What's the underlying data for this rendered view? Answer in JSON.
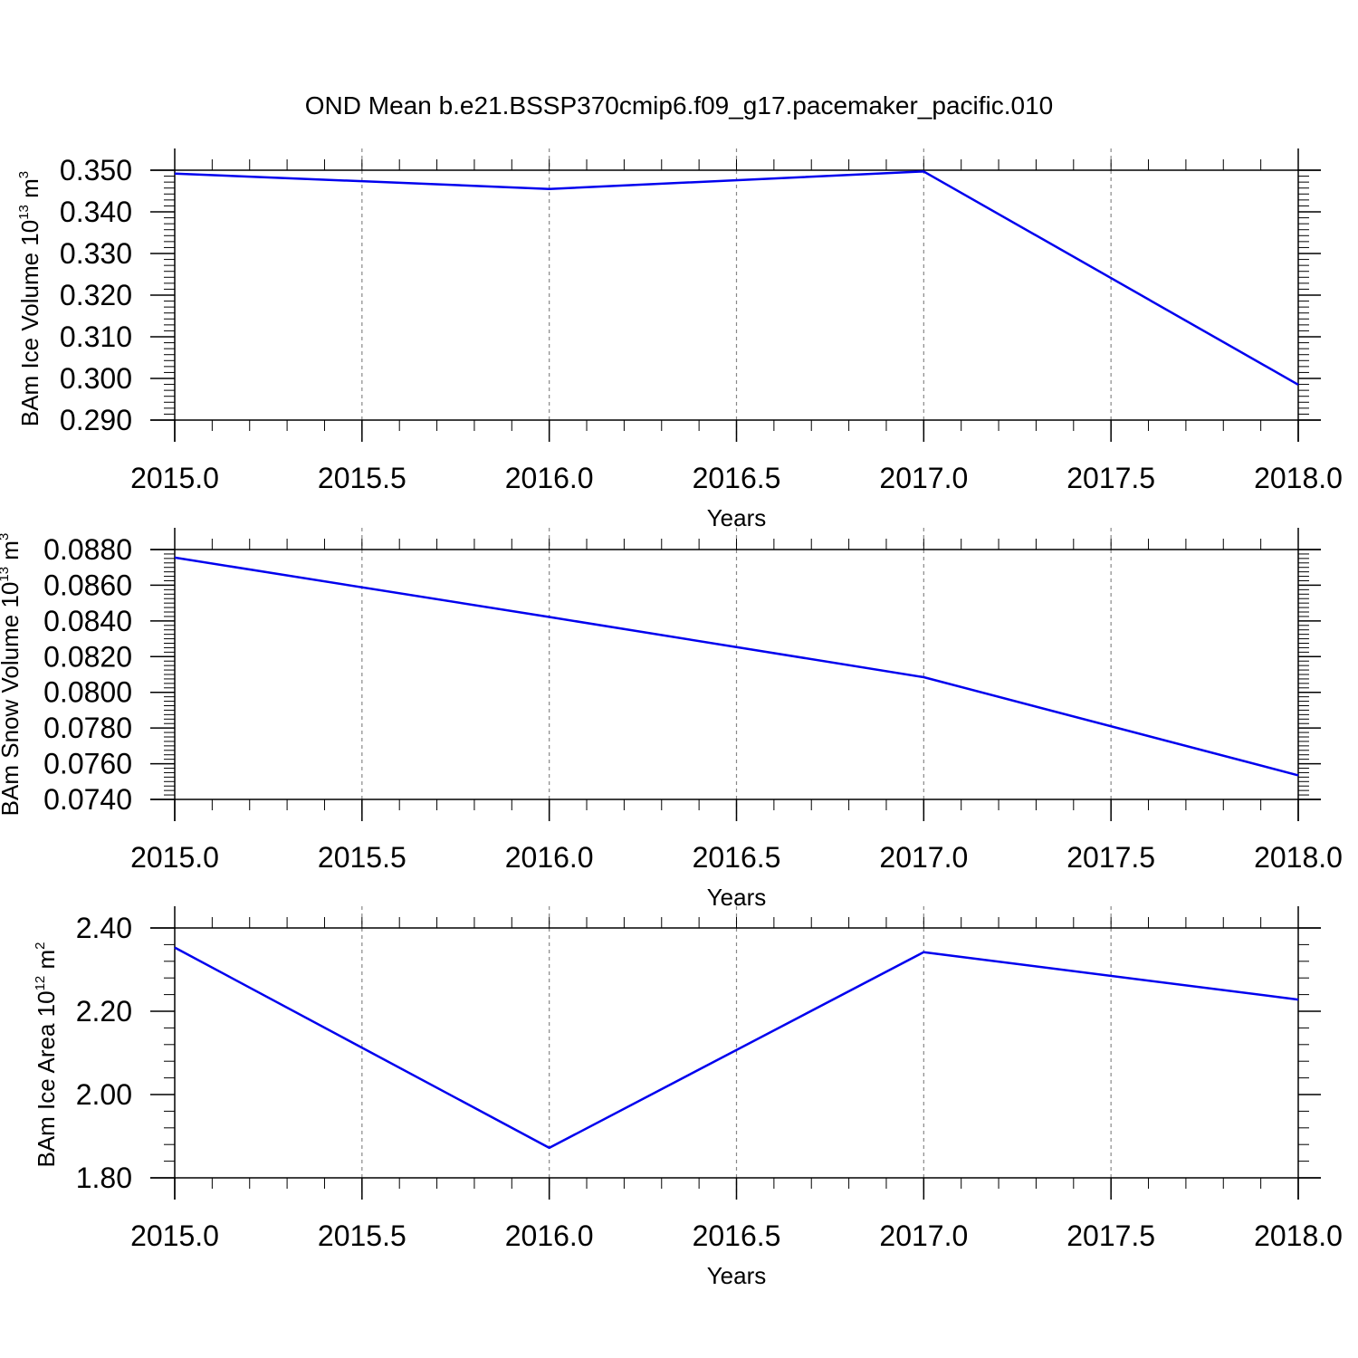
{
  "figure": {
    "title": "OND Mean b.e21.BSSP370cmip6.f09_g17.pacemaker_pacific.010"
  },
  "chart_data": [
    {
      "type": "line",
      "xlabel": "Years",
      "ylabel": {
        "text": "BAm Ice Volume 10",
        "sup1": "13",
        "unit": " m",
        "sup2": "3"
      },
      "xlim": [
        2015.0,
        2018.0
      ],
      "ylim": [
        0.29,
        0.35
      ],
      "xticks": [
        2015.0,
        2015.5,
        2016.0,
        2016.5,
        2017.0,
        2017.5,
        2018.0
      ],
      "xtick_labels": [
        "2015.0",
        "2015.5",
        "2016.0",
        "2016.5",
        "2017.0",
        "2017.5",
        "2018.0"
      ],
      "yticks": [
        0.29,
        0.3,
        0.31,
        0.32,
        0.33,
        0.34,
        0.35
      ],
      "ytick_labels": [
        "0.290",
        "0.300",
        "0.310",
        "0.320",
        "0.330",
        "0.340",
        "0.350"
      ],
      "grid": "vertical-dashed",
      "series": [
        {
          "color": "#0000ee",
          "x": [
            2015,
            2016,
            2017,
            2018
          ],
          "y": [
            0.3492,
            0.3455,
            0.3497,
            0.2985
          ]
        }
      ]
    },
    {
      "type": "line",
      "xlabel": "Years",
      "ylabel": {
        "text": "BAm Snow Volume 10",
        "sup1": "13",
        "unit": " m",
        "sup2": "3"
      },
      "xlim": [
        2015.0,
        2018.0
      ],
      "ylim": [
        0.074,
        0.088
      ],
      "xticks": [
        2015.0,
        2015.5,
        2016.0,
        2016.5,
        2017.0,
        2017.5,
        2018.0
      ],
      "xtick_labels": [
        "2015.0",
        "2015.5",
        "2016.0",
        "2016.5",
        "2017.0",
        "2017.5",
        "2018.0"
      ],
      "yticks": [
        0.074,
        0.076,
        0.078,
        0.08,
        0.082,
        0.084,
        0.086,
        0.088
      ],
      "ytick_labels": [
        "0.0740",
        "0.0760",
        "0.0780",
        "0.0800",
        "0.0820",
        "0.0840",
        "0.0860",
        "0.0880"
      ],
      "grid": "vertical-dashed",
      "series": [
        {
          "color": "#0000ee",
          "x": [
            2015,
            2016,
            2017,
            2018
          ],
          "y": [
            0.08755,
            0.08422,
            0.08085,
            0.07535
          ]
        }
      ]
    },
    {
      "type": "line",
      "xlabel": "Years",
      "ylabel": {
        "text": "BAm Ice Area 10",
        "sup1": "12",
        "unit": " m",
        "sup2": "2"
      },
      "xlim": [
        2015.0,
        2018.0
      ],
      "ylim": [
        1.8,
        2.4
      ],
      "xticks": [
        2015.0,
        2015.5,
        2016.0,
        2016.5,
        2017.0,
        2017.5,
        2018.0
      ],
      "xtick_labels": [
        "2015.0",
        "2015.5",
        "2016.0",
        "2016.5",
        "2017.0",
        "2017.5",
        "2018.0"
      ],
      "yticks": [
        1.8,
        2.0,
        2.2,
        2.4
      ],
      "ytick_labels": [
        "1.80",
        "2.00",
        "2.20",
        "2.40"
      ],
      "grid": "vertical-dashed",
      "series": [
        {
          "color": "#0000ee",
          "x": [
            2015,
            2016,
            2017,
            2018
          ],
          "y": [
            2.353,
            1.872,
            2.342,
            2.228
          ]
        }
      ]
    }
  ]
}
